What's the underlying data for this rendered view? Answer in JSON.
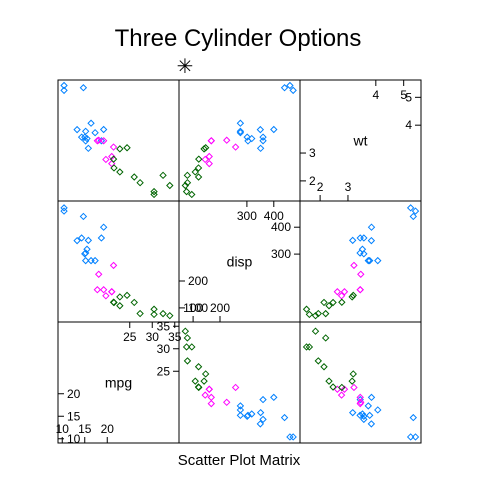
{
  "chart_data": {
    "type": "scatter",
    "title": "Three Cylinder Options",
    "xlabel": "Scatter Plot Matrix",
    "legend_symbol": "✳",
    "variables": [
      {
        "key": "mpg",
        "label": "mpg",
        "range": [
          9.5,
          35.5
        ],
        "low_ticks": [
          10,
          15,
          20
        ],
        "high_ticks": [
          25,
          30,
          35
        ]
      },
      {
        "key": "disp",
        "label": "disp",
        "range": [
          55,
          490
        ],
        "low_ticks": [
          100,
          200
        ],
        "high_ticks": [
          300,
          400
        ]
      },
      {
        "key": "wt",
        "label": "wt",
        "range": [
          1.35,
          5.55
        ],
        "low_ticks": [
          2,
          3
        ],
        "high_ticks": [
          4,
          5
        ]
      }
    ],
    "groups": [
      {
        "cyl": 4,
        "color": "#006400"
      },
      {
        "cyl": 6,
        "color": "#ff00ff"
      },
      {
        "cyl": 8,
        "color": "#0080ff"
      }
    ],
    "points": [
      {
        "mpg": 21.0,
        "disp": 160.0,
        "wt": 2.62,
        "cyl": 6
      },
      {
        "mpg": 21.0,
        "disp": 160.0,
        "wt": 2.875,
        "cyl": 6
      },
      {
        "mpg": 22.8,
        "disp": 108.0,
        "wt": 2.32,
        "cyl": 4
      },
      {
        "mpg": 21.4,
        "disp": 258.0,
        "wt": 3.215,
        "cyl": 6
      },
      {
        "mpg": 18.7,
        "disp": 360.0,
        "wt": 3.44,
        "cyl": 8
      },
      {
        "mpg": 18.1,
        "disp": 225.0,
        "wt": 3.46,
        "cyl": 6
      },
      {
        "mpg": 14.3,
        "disp": 360.0,
        "wt": 3.57,
        "cyl": 8
      },
      {
        "mpg": 24.4,
        "disp": 146.7,
        "wt": 3.19,
        "cyl": 4
      },
      {
        "mpg": 22.8,
        "disp": 140.8,
        "wt": 3.15,
        "cyl": 4
      },
      {
        "mpg": 19.2,
        "disp": 167.6,
        "wt": 3.44,
        "cyl": 6
      },
      {
        "mpg": 17.8,
        "disp": 167.6,
        "wt": 3.44,
        "cyl": 6
      },
      {
        "mpg": 16.4,
        "disp": 275.8,
        "wt": 4.07,
        "cyl": 8
      },
      {
        "mpg": 17.3,
        "disp": 275.8,
        "wt": 3.73,
        "cyl": 8
      },
      {
        "mpg": 15.2,
        "disp": 275.8,
        "wt": 3.78,
        "cyl": 8
      },
      {
        "mpg": 10.4,
        "disp": 472.0,
        "wt": 5.25,
        "cyl": 8
      },
      {
        "mpg": 10.4,
        "disp": 460.0,
        "wt": 5.424,
        "cyl": 8
      },
      {
        "mpg": 14.7,
        "disp": 440.0,
        "wt": 5.345,
        "cyl": 8
      },
      {
        "mpg": 32.4,
        "disp": 78.7,
        "wt": 2.2,
        "cyl": 4
      },
      {
        "mpg": 30.4,
        "disp": 75.7,
        "wt": 1.615,
        "cyl": 4
      },
      {
        "mpg": 33.9,
        "disp": 71.1,
        "wt": 1.835,
        "cyl": 4
      },
      {
        "mpg": 21.5,
        "disp": 120.1,
        "wt": 2.465,
        "cyl": 4
      },
      {
        "mpg": 15.5,
        "disp": 318.0,
        "wt": 3.52,
        "cyl": 8
      },
      {
        "mpg": 15.2,
        "disp": 304.0,
        "wt": 3.435,
        "cyl": 8
      },
      {
        "mpg": 13.3,
        "disp": 350.0,
        "wt": 3.84,
        "cyl": 8
      },
      {
        "mpg": 19.2,
        "disp": 400.0,
        "wt": 3.845,
        "cyl": 8
      },
      {
        "mpg": 27.3,
        "disp": 79.0,
        "wt": 1.935,
        "cyl": 4
      },
      {
        "mpg": 26.0,
        "disp": 120.3,
        "wt": 2.14,
        "cyl": 4
      },
      {
        "mpg": 30.4,
        "disp": 95.1,
        "wt": 1.513,
        "cyl": 4
      },
      {
        "mpg": 15.8,
        "disp": 351.0,
        "wt": 3.17,
        "cyl": 8
      },
      {
        "mpg": 19.7,
        "disp": 145.0,
        "wt": 2.77,
        "cyl": 6
      },
      {
        "mpg": 15.0,
        "disp": 301.0,
        "wt": 3.57,
        "cyl": 8
      },
      {
        "mpg": 21.4,
        "disp": 121.0,
        "wt": 2.78,
        "cyl": 4
      }
    ]
  }
}
